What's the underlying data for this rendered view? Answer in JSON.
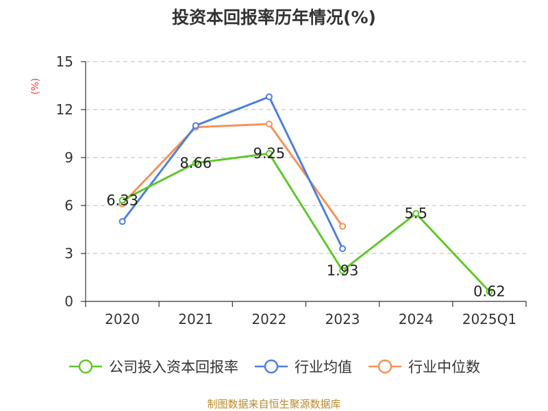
{
  "title": "投资本回报率历年情况(%)",
  "unit_label": "(%)",
  "source": "制图数据来自恒生聚源数据库",
  "colors": {
    "company": "#5fc72b",
    "industry_avg": "#4e7fdc",
    "industry_median": "#f5915b",
    "grid": "#c8c8c8",
    "axis": "#333333"
  },
  "chart_data": {
    "type": "line",
    "title": "投资本回报率历年情况(%)",
    "xlabel": "",
    "ylabel": "(%)",
    "categories": [
      "2020",
      "2021",
      "2022",
      "2023",
      "2024",
      "2025Q1"
    ],
    "ylim": [
      0,
      15
    ],
    "yticks": [
      0,
      3,
      6,
      9,
      12,
      15
    ],
    "grid": true,
    "legend_position": "bottom",
    "series": [
      {
        "name": "公司投入资本回报率",
        "key": "company",
        "values": [
          6.33,
          8.66,
          9.25,
          1.93,
          5.5,
          0.62
        ],
        "labels": [
          "6.33",
          "8.66",
          "9.25",
          "1.93",
          "5.5",
          "0.62"
        ]
      },
      {
        "name": "行业均值",
        "key": "industry_avg",
        "values": [
          5.0,
          11.0,
          12.8,
          3.3,
          null,
          null
        ]
      },
      {
        "name": "行业中位数",
        "key": "industry_median",
        "values": [
          6.1,
          10.9,
          11.1,
          4.7,
          null,
          null
        ]
      }
    ]
  }
}
